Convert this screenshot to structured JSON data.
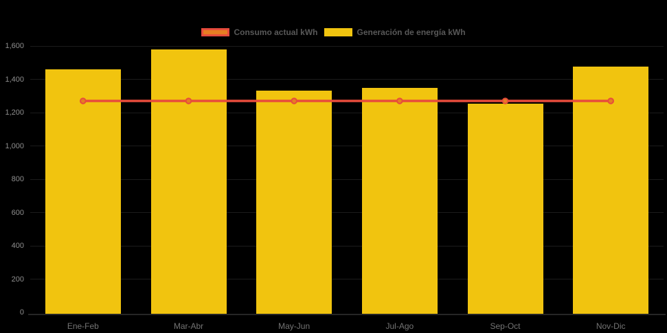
{
  "chart_data": {
    "type": "combo-bar-line",
    "title": "",
    "categories": [
      "Ene-Feb",
      "Mar-Abr",
      "May-Jun",
      "Jul-Ago",
      "Sep-Oct",
      "Nov-Dic"
    ],
    "series": [
      {
        "name": "Consumo actual kWh",
        "type": "line",
        "color": "#e74c3c",
        "marker_fill": "#e67e22",
        "values": [
          1270,
          1270,
          1270,
          1270,
          1270,
          1270
        ]
      },
      {
        "name": "Generación de energía kWh",
        "type": "bar",
        "color": "#f1c40f",
        "values": [
          1460,
          1580,
          1330,
          1350,
          1255,
          1475
        ]
      }
    ],
    "xlabel": "",
    "ylabel": "",
    "ylim": [
      0,
      1600
    ],
    "ytick_step": 200,
    "ytick_labels": [
      "0",
      "200",
      "400",
      "600",
      "800",
      "1,000",
      "1,200",
      "1,400",
      "1,600"
    ],
    "grid": false,
    "legend_position": "top-center"
  },
  "colors": {
    "background": "#000000",
    "bar_fill": "#f1c40f",
    "line_stroke": "#e74c3c",
    "marker_fill": "#e67e22",
    "y_tick_text": "#8f8f8f",
    "x_tick_text": "#747474",
    "legend_text": "#585858",
    "axis_line": "#464646"
  }
}
